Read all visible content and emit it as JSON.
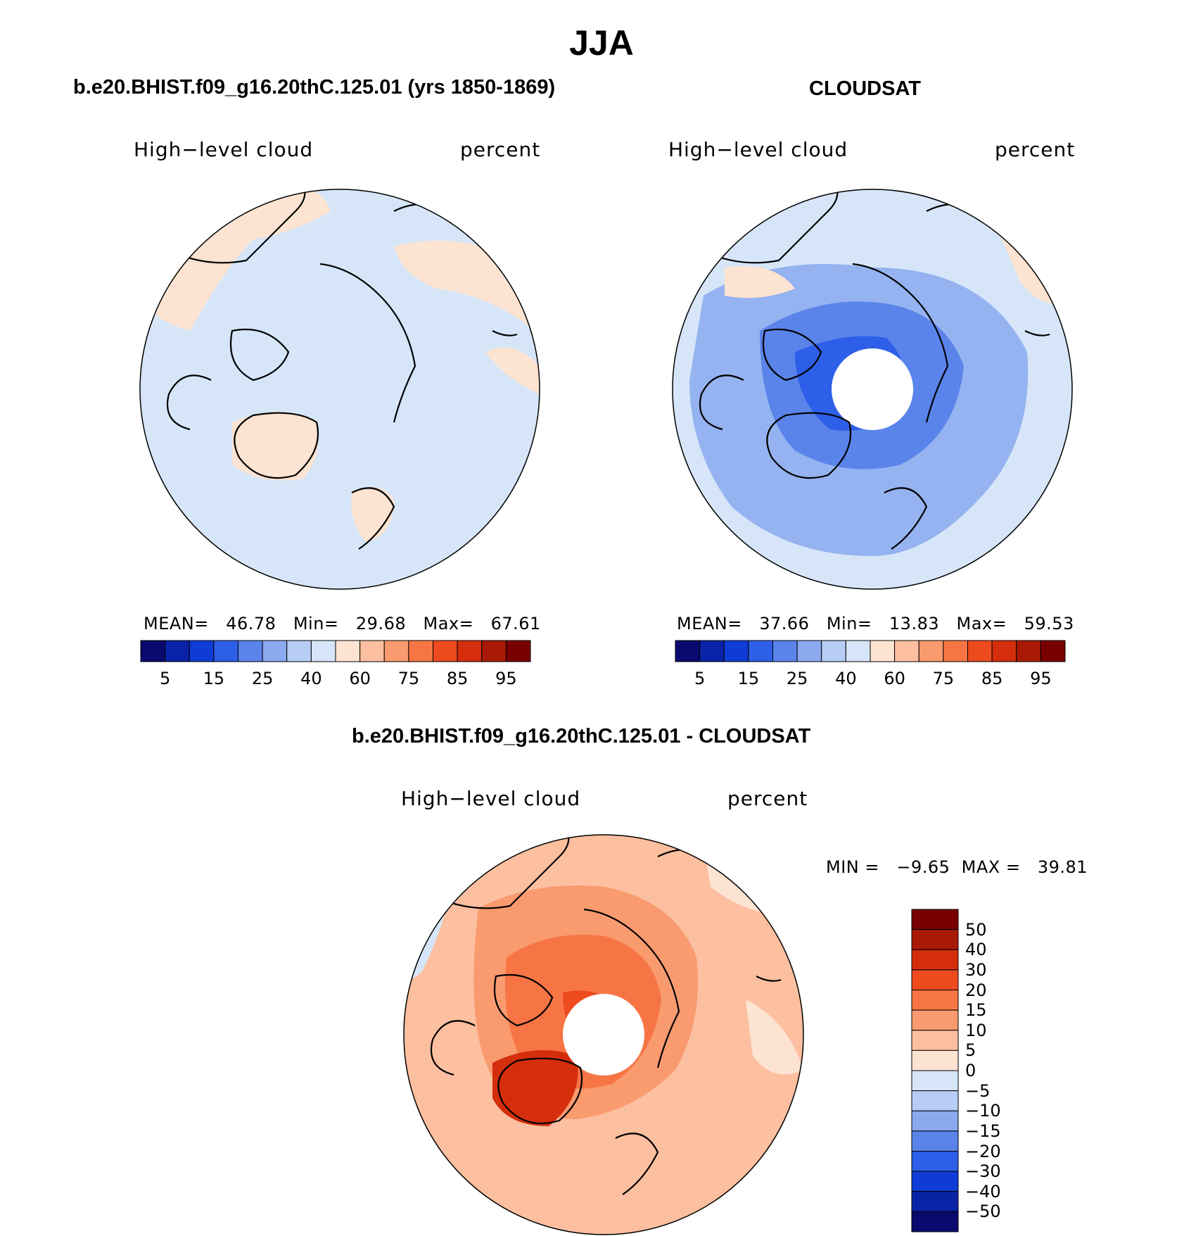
{
  "figure": {
    "title": "JJA"
  },
  "panels": {
    "model": {
      "title": "b.e20.BHIST.f09_g16.20thC.125.01 (yrs 1850-1869)",
      "variable": "High−level cloud",
      "units": "percent",
      "stats": "MEAN=   46.78   Min=   29.68   Max=   67.61",
      "base_color": "#d6e6f8",
      "patch_color": "#fde3d1"
    },
    "obs": {
      "title": "CLOUDSAT",
      "variable": "High−level cloud",
      "units": "percent",
      "stats": "MEAN=   37.66   Min=   13.83   Max=   59.53",
      "base_color": "#b7cdf5",
      "patch_color": "#fde3d1"
    },
    "diff": {
      "title": "b.e20.BHIST.f09_g16.20thC.125.01 - CLOUDSAT",
      "variable": "High−level cloud",
      "units": "percent",
      "stats": "MIN =   −9.65  MAX =   39.81",
      "base_color": "#fcbfa0",
      "patch_color": "#f7854f"
    }
  },
  "colorbar_abs": {
    "labels": [
      "5",
      "15",
      "25",
      "40",
      "60",
      "75",
      "85",
      "95"
    ],
    "colors": [
      "#0a0a6e",
      "#0a23a6",
      "#0f3cd6",
      "#2d5fe8",
      "#5a84ea",
      "#8aa9ef",
      "#b7cdf5",
      "#d6e6f8",
      "#fde3d1",
      "#fcbfa0",
      "#f99a6f",
      "#f77544",
      "#ed4a1e",
      "#d52e0c",
      "#a91a06",
      "#790000"
    ]
  },
  "colorbar_diff": {
    "labels": [
      "50",
      "40",
      "30",
      "20",
      "15",
      "10",
      "5",
      "0",
      "−5",
      "−10",
      "−15",
      "−20",
      "−30",
      "−40",
      "−50"
    ],
    "colors": [
      "#790000",
      "#a91a06",
      "#d52e0c",
      "#ed4a1e",
      "#f77544",
      "#f99a6f",
      "#fcbfa0",
      "#fde3d1",
      "#d6e6f8",
      "#b7cdf5",
      "#8aa9ef",
      "#5a84ea",
      "#2d5fe8",
      "#0f3cd6",
      "#0a23a6",
      "#0a0a6e"
    ]
  }
}
